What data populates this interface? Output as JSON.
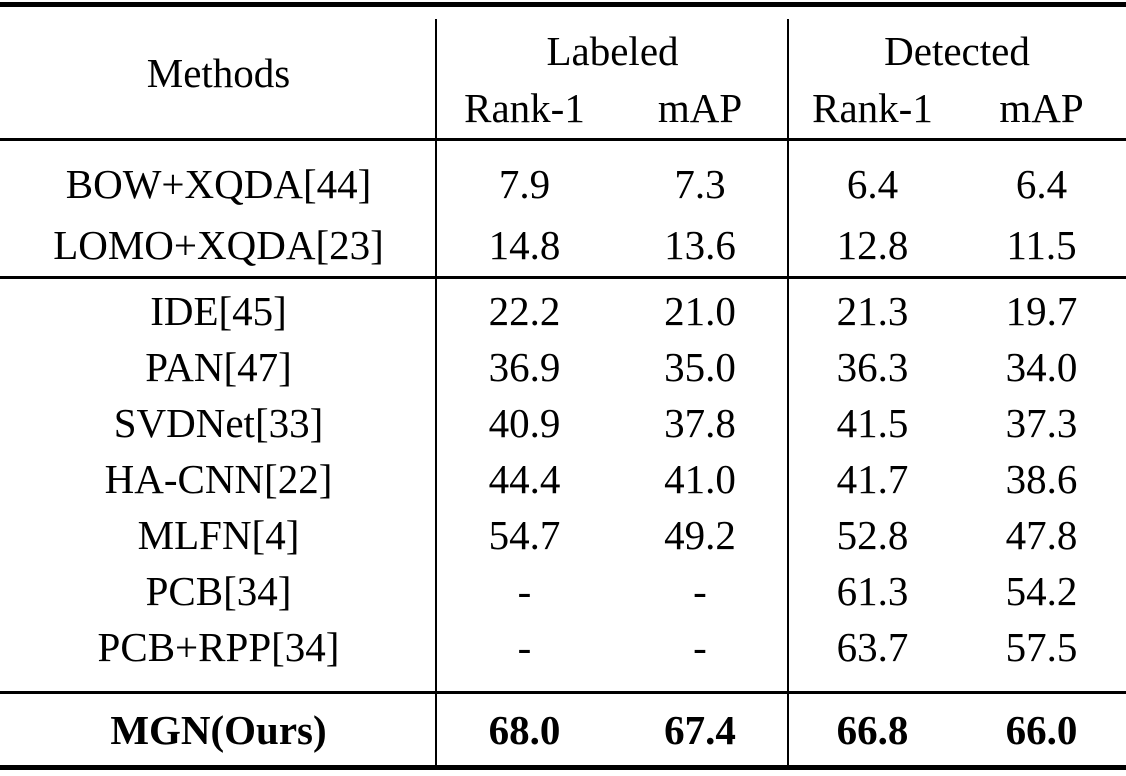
{
  "table": {
    "header": {
      "methods_label": "Methods",
      "groups": [
        {
          "label": "Labeled",
          "subcolumns": [
            "Rank-1",
            "mAP"
          ]
        },
        {
          "label": "Detected",
          "subcolumns": [
            "Rank-1",
            "mAP"
          ]
        }
      ]
    },
    "sections": [
      {
        "rows": [
          {
            "method": "BOW+XQDA[44]",
            "values": [
              "7.9",
              "7.3",
              "6.4",
              "6.4"
            ],
            "bold": false
          },
          {
            "method": "LOMO+XQDA[23]",
            "values": [
              "14.8",
              "13.6",
              "12.8",
              "11.5"
            ],
            "bold": false
          }
        ]
      },
      {
        "rows": [
          {
            "method": "IDE[45]",
            "values": [
              "22.2",
              "21.0",
              "21.3",
              "19.7"
            ],
            "bold": false
          },
          {
            "method": "PAN[47]",
            "values": [
              "36.9",
              "35.0",
              "36.3",
              "34.0"
            ],
            "bold": false
          },
          {
            "method": "SVDNet[33]",
            "values": [
              "40.9",
              "37.8",
              "41.5",
              "37.3"
            ],
            "bold": false
          },
          {
            "method": "HA-CNN[22]",
            "values": [
              "44.4",
              "41.0",
              "41.7",
              "38.6"
            ],
            "bold": false
          },
          {
            "method": "MLFN[4]",
            "values": [
              "54.7",
              "49.2",
              "52.8",
              "47.8"
            ],
            "bold": false
          },
          {
            "method": "PCB[34]",
            "values": [
              "-",
              "-",
              "61.3",
              "54.2"
            ],
            "bold": false
          },
          {
            "method": "PCB+RPP[34]",
            "values": [
              "-",
              "-",
              "63.7",
              "57.5"
            ],
            "bold": false
          }
        ]
      },
      {
        "rows": [
          {
            "method": "MGN(Ours)",
            "values": [
              "68.0",
              "67.4",
              "66.8",
              "66.0"
            ],
            "bold": true
          }
        ]
      }
    ],
    "colors": {
      "text": "#000000",
      "background": "#ffffff",
      "rule": "#000000"
    }
  }
}
